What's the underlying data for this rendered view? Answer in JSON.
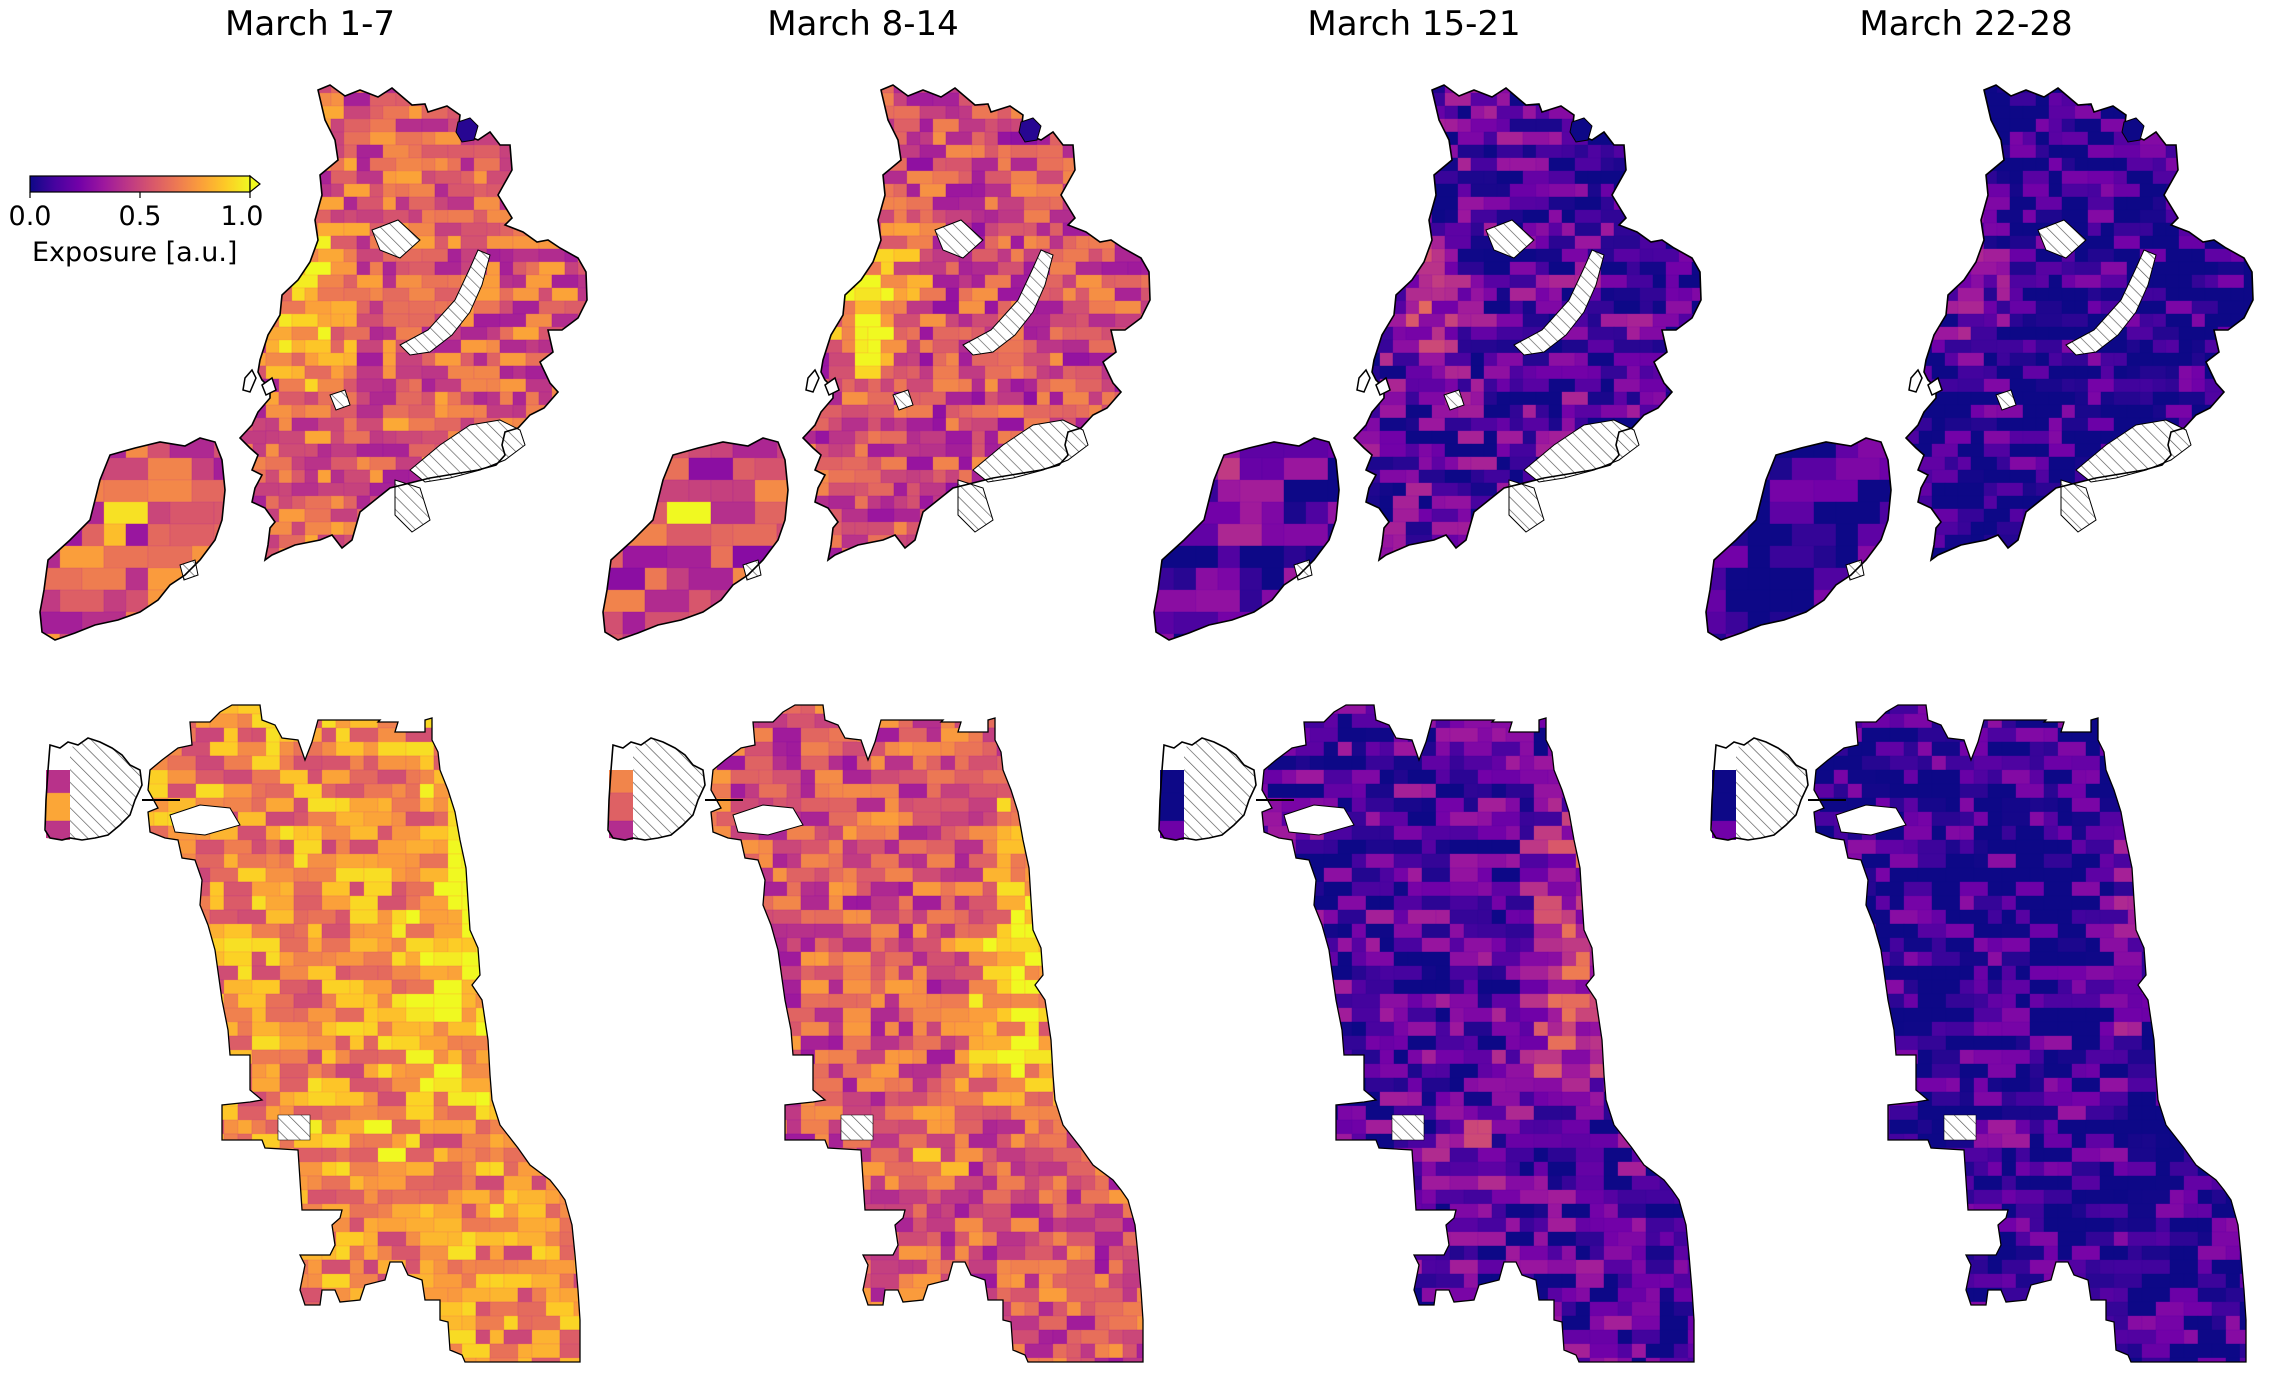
{
  "figure": {
    "panel_titles": [
      "March 1-7",
      "March 8-14",
      "March 15-21",
      "March 22-28"
    ],
    "rows": [
      "nyc",
      "chicago"
    ]
  },
  "colorbar": {
    "label": "Exposure [a.u.]",
    "ticks": [
      "0.0",
      "0.5",
      "1.0"
    ],
    "colormap": "plasma",
    "extend": "max"
  },
  "colors": {
    "plasma": [
      "#0d0887",
      "#46039f",
      "#7201a8",
      "#9c179e",
      "#bd3786",
      "#d8576b",
      "#ed7953",
      "#fb9f3a",
      "#fdca26",
      "#f0f921"
    ],
    "missing_hatch": "#555555",
    "outline": "#000000"
  },
  "chart_data": {
    "type": "choropleth",
    "variable": "Exposure [a.u.]",
    "scale": [
      0.0,
      1.0
    ],
    "periods": [
      "March 1-7",
      "March 8-14",
      "March 15-21",
      "March 22-28"
    ],
    "regions": [
      {
        "name": "nyc",
        "approx_mean_exposure": [
          0.58,
          0.52,
          0.16,
          0.05
        ],
        "hotspot_exposure": [
          1.0,
          1.0,
          0.45,
          0.3
        ]
      },
      {
        "name": "chicago",
        "approx_mean_exposure": [
          0.72,
          0.55,
          0.14,
          0.07
        ],
        "hotspot_exposure": [
          1.0,
          1.0,
          0.55,
          0.25
        ]
      }
    ]
  }
}
